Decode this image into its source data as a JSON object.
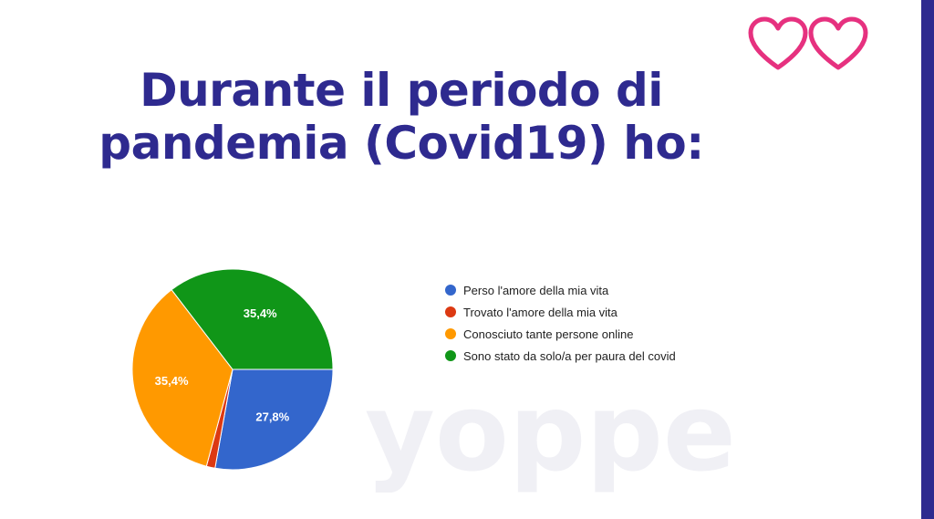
{
  "page": {
    "title_line1": "Durante il periodo di",
    "title_line2": "pandemia (Covid19) ho:",
    "accent_color": "#2e2a8f",
    "heart_color": "#e6317f",
    "watermark": "yoppe"
  },
  "chart_data": {
    "type": "pie",
    "title": "",
    "legend_position": "right",
    "series": [
      {
        "name": "Perso l'amore della mia vita",
        "value": 27.8,
        "label": "27,8%",
        "color": "#3366cc"
      },
      {
        "name": "Trovato l'amore della mia vita",
        "value": 1.4,
        "label": "",
        "color": "#dc3912"
      },
      {
        "name": "Conosciuto tante persone online",
        "value": 35.4,
        "label": "35,4%",
        "color": "#ff9900"
      },
      {
        "name": "Sono stato da solo/a per paura del covid",
        "value": 35.4,
        "label": "35,4%",
        "color": "#109618"
      }
    ]
  }
}
